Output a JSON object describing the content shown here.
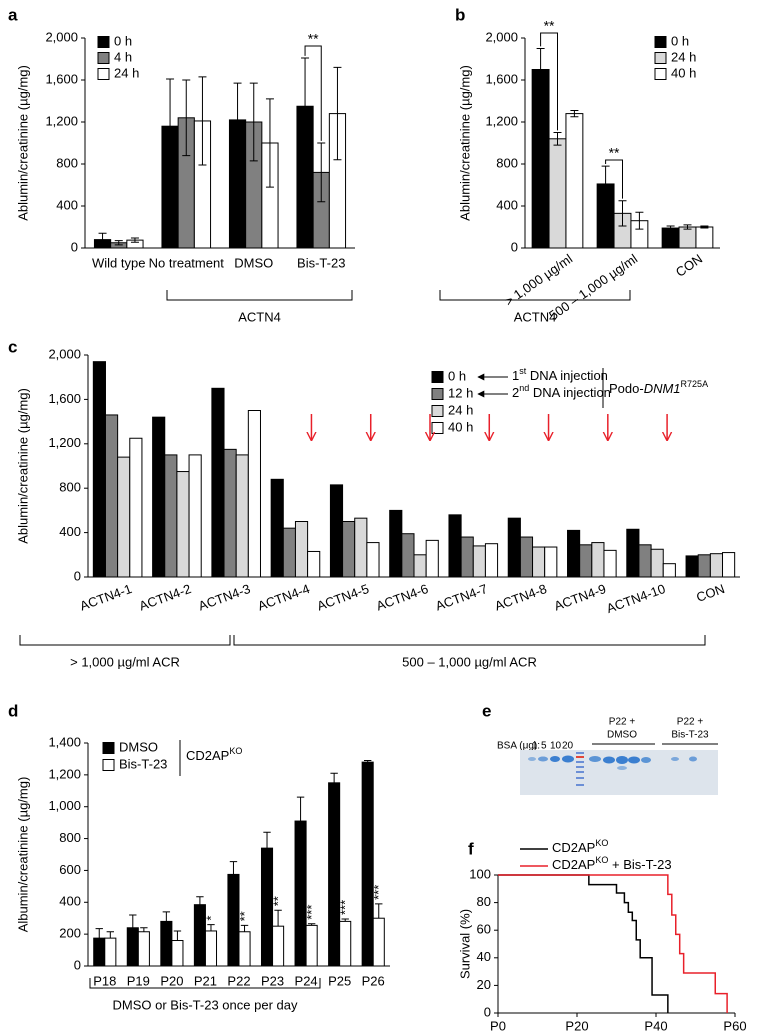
{
  "chart_data": [
    {
      "type": "bar",
      "panel_label": "a",
      "ylabel": "Ablumin/creatinine (µg/mg)",
      "categories": [
        "Wild type",
        "No treatment",
        "DMSO",
        "Bis-T-23"
      ],
      "series": [
        {
          "name": "0 h",
          "color": "#000000",
          "values": [
            80,
            1160,
            1220,
            1350
          ],
          "errors": [
            60,
            450,
            350,
            460
          ]
        },
        {
          "name": "4 h",
          "color": "#808080",
          "values": [
            50,
            1240,
            1200,
            720
          ],
          "errors": [
            20,
            360,
            370,
            280
          ]
        },
        {
          "name": "24 h",
          "color": "#ffffff",
          "values": [
            75,
            1210,
            1000,
            1280
          ],
          "errors": [
            20,
            420,
            420,
            440
          ]
        }
      ],
      "ylim": [
        0,
        2000
      ],
      "yticks": [
        0,
        400,
        800,
        {
          "value": 1200,
          "label": "1,200"
        },
        {
          "value": 1600,
          "label": "1,600"
        },
        {
          "value": 2000,
          "label": "2,000"
        }
      ],
      "error_bars": "both",
      "group_labels": [
        "ACTN4"
      ],
      "annotations": [
        "**"
      ]
    },
    {
      "type": "bar",
      "panel_label": "b",
      "ylabel": "Ablumin/creatinine (µg/mg)",
      "categories": [
        "> 1,000 µg/ml",
        "500 – 1,000 µg/ml",
        "CON"
      ],
      "series": [
        {
          "name": "0 h",
          "color": "#000000",
          "values": [
            1700,
            610,
            190
          ],
          "errors": [
            200,
            170,
            20
          ]
        },
        {
          "name": "24 h",
          "color": "#d9d9d9",
          "values": [
            1040,
            330,
            200
          ],
          "errors": [
            60,
            120,
            20
          ]
        },
        {
          "name": "40 h",
          "color": "#ffffff",
          "values": [
            1280,
            260,
            200
          ],
          "errors": [
            30,
            80,
            10
          ]
        }
      ],
      "ylim": [
        0,
        2000
      ],
      "yticks": [
        0,
        400,
        800,
        {
          "value": 1200,
          "label": "1,200"
        },
        {
          "value": 1600,
          "label": "1,600"
        },
        {
          "value": 2000,
          "label": "2,000"
        }
      ],
      "error_bars": "both",
      "group_labels": [
        "ACTN4"
      ],
      "annotations": [
        "**",
        "**"
      ]
    },
    {
      "type": "bar",
      "panel_label": "c",
      "ylabel": "Ablumin/creatinine (µg/mg)",
      "categories": [
        "ACTN4-1",
        "ACTN4-2",
        "ACTN4-3",
        "ACTN4-4",
        "ACTN4-5",
        "ACTN4-6",
        "ACTN4-7",
        "ACTN4-8",
        "ACTN4-9",
        "ACTN4-10",
        "CON"
      ],
      "series": [
        {
          "name": "0 h",
          "color": "#000000",
          "values": [
            1940,
            1440,
            1700,
            880,
            830,
            600,
            560,
            530,
            420,
            430,
            190
          ]
        },
        {
          "name": "12 h",
          "color": "#808080",
          "values": [
            1460,
            1100,
            1150,
            440,
            500,
            390,
            360,
            360,
            290,
            290,
            200
          ]
        },
        {
          "name": "24 h",
          "color": "#d9d9d9",
          "values": [
            1080,
            950,
            1100,
            500,
            530,
            200,
            280,
            270,
            310,
            250,
            210
          ]
        },
        {
          "name": "40 h",
          "color": "#ffffff",
          "values": [
            1250,
            1100,
            1500,
            230,
            310,
            330,
            300,
            270,
            240,
            120,
            220
          ]
        }
      ],
      "ylim": [
        0,
        2000
      ],
      "yticks": [
        0,
        400,
        800,
        {
          "value": 1200,
          "label": "1,200"
        },
        {
          "value": 1600,
          "label": "1,600"
        },
        {
          "value": 2000,
          "label": "2,000"
        }
      ],
      "group_labels": [
        "> 1,000 µg/ml ACR",
        "500 – 1,000 µg/ml ACR"
      ],
      "notes": [
        {
          "text": "1",
          "sup": "st",
          "suffix": " DNA injection"
        },
        {
          "text": "2",
          "sup": "nd",
          "suffix": " DNA injection"
        },
        {
          "text": "Podo-",
          "italic": "DNM1",
          "sup": "R725A"
        }
      ]
    },
    {
      "type": "bar",
      "panel_label": "d",
      "ylabel": "Albumin/creatinine (µg/mg)",
      "categories": [
        "P18",
        "P19",
        "P20",
        "P21",
        "P22",
        "P23",
        "P24",
        "P25",
        "P26"
      ],
      "series": [
        {
          "name": "DMSO",
          "color": "#000000",
          "values": [
            175,
            240,
            280,
            385,
            575,
            740,
            910,
            1150,
            1280
          ],
          "errors": [
            60,
            80,
            60,
            50,
            80,
            100,
            150,
            60,
            10
          ]
        },
        {
          "name": "Bis-T-23",
          "color": "#ffffff",
          "values": [
            175,
            215,
            160,
            220,
            215,
            250,
            255,
            280,
            300
          ],
          "errors": [
            40,
            25,
            60,
            40,
            40,
            100,
            10,
            15,
            90
          ]
        }
      ],
      "ylim": [
        0,
        1400
      ],
      "yticks": [
        0,
        200,
        400,
        600,
        800,
        {
          "value": 1000,
          "label": "1,000"
        },
        {
          "value": 1200,
          "label": "1,200"
        },
        {
          "value": 1400,
          "label": "1,400"
        }
      ],
      "error_bars": "up",
      "legend_title": {
        "text": "CD2AP",
        "sup": "KO"
      },
      "significance": [
        null,
        null,
        null,
        "*",
        "**",
        "**",
        "***",
        "***",
        "***"
      ],
      "group_labels": [
        "DMSO or Bis-T-23 once per day"
      ]
    },
    {
      "type": "line",
      "panel_label": "f",
      "ylabel": "Survival (%)",
      "series": [
        {
          "name": {
            "text": "CD2AP",
            "sup": "KO"
          },
          "color": "#000000",
          "x": [
            0,
            23,
            23,
            30,
            30,
            32,
            32,
            33,
            33,
            34,
            34,
            35,
            35,
            36,
            36,
            39,
            39,
            43,
            43
          ],
          "values": [
            100,
            100,
            93,
            93,
            87,
            87,
            80,
            80,
            73,
            73,
            67,
            67,
            53,
            53,
            40,
            40,
            13,
            13,
            0
          ]
        },
        {
          "name": {
            "text": "CD2AP",
            "sup": "KO",
            "suffix": " + Bis-T-23"
          },
          "color": "#e8202a",
          "x": [
            0,
            43,
            43,
            44,
            44,
            45,
            45,
            46,
            46,
            47,
            47,
            55,
            55,
            58,
            58
          ],
          "values": [
            100,
            100,
            86,
            86,
            71,
            71,
            57,
            57,
            43,
            43,
            29,
            29,
            14,
            14,
            0
          ]
        }
      ],
      "xlim": [
        0,
        60
      ],
      "xticks": [
        {
          "value": 0,
          "label": "P0"
        },
        {
          "value": 20,
          "label": "P20"
        },
        {
          "value": 40,
          "label": "P40"
        },
        {
          "value": 60,
          "label": "P60"
        }
      ],
      "ylim": [
        0,
        100
      ],
      "yticks": [
        0,
        20,
        40,
        60,
        80,
        100
      ],
      "step": true
    }
  ],
  "gel": {
    "panel_label": "e",
    "bsa_label": "BSA (μg):",
    "bsa_amounts": [
      "1",
      "5",
      "10",
      "20"
    ],
    "lane_groups": [
      [
        "P22 +",
        "DMSO"
      ],
      [
        "P22 +",
        "Bis-T-23"
      ]
    ]
  }
}
